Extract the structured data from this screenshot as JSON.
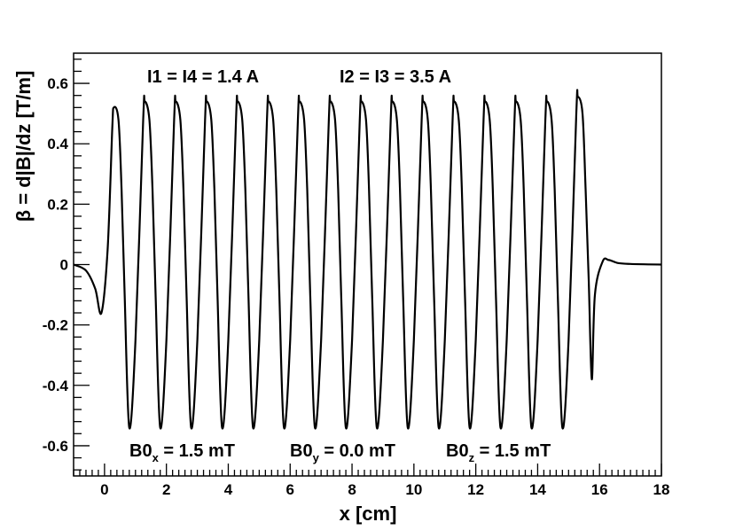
{
  "chart_data": {
    "type": "line",
    "xlabel": "x [cm]",
    "ylabel": "β = d|B|/dz [T/m]",
    "xlim": [
      -1,
      18
    ],
    "ylim": [
      -0.7,
      0.7
    ],
    "x_ticks": [
      0,
      2,
      4,
      6,
      8,
      10,
      12,
      14,
      16,
      18
    ],
    "x_tick_labels": [
      "0",
      "2",
      "4",
      "6",
      "8",
      "10",
      "12",
      "14",
      "16",
      "18"
    ],
    "y_ticks": [
      -0.6,
      -0.4,
      -0.2,
      0,
      0.2,
      0.4,
      0.6
    ],
    "y_tick_labels": [
      "-0.6",
      "-0.4",
      "-0.2",
      "0",
      "0.2",
      "0.4",
      "0.6"
    ],
    "grid": false,
    "legend": "none",
    "line_color": "#000000",
    "annotations": {
      "currents_1": "I1 = I4 = 1.4 A",
      "currents_2": "I2 = I3 = 3.5 A",
      "b0x": {
        "main": "B0",
        "sub": "x",
        "rest": " = 1.5 mT"
      },
      "b0y": {
        "main": "B0",
        "sub": "y",
        "rest": " = 0.0 mT"
      },
      "b0z": {
        "main": "B0",
        "sub": "z",
        "rest": " = 1.5 mT"
      }
    },
    "series": [
      {
        "x": [
          -1.0,
          -0.6,
          -0.3,
          -0.1,
          0.1,
          0.25,
          0.3,
          0.45,
          0.55,
          0.65,
          0.8,
          1.0,
          1.25,
          1.3,
          1.45,
          1.55,
          1.65,
          1.8,
          2.0,
          2.25,
          2.3,
          2.45,
          2.55,
          2.65,
          2.8,
          3.0,
          3.25,
          3.3,
          3.45,
          3.55,
          3.65,
          3.8,
          4.0,
          4.25,
          4.3,
          4.45,
          4.55,
          4.65,
          4.8,
          5.0,
          5.25,
          5.3,
          5.45,
          5.55,
          5.65,
          5.8,
          6.0,
          6.25,
          6.3,
          6.45,
          6.55,
          6.65,
          6.8,
          7.0,
          7.25,
          7.3,
          7.45,
          7.55,
          7.65,
          7.8,
          8.0,
          8.25,
          8.3,
          8.45,
          8.55,
          8.65,
          8.8,
          9.0,
          9.25,
          9.3,
          9.45,
          9.55,
          9.65,
          9.8,
          10.0,
          10.25,
          10.3,
          10.45,
          10.55,
          10.65,
          10.8,
          11.0,
          11.25,
          11.3,
          11.45,
          11.55,
          11.65,
          11.8,
          12.0,
          12.25,
          12.3,
          12.45,
          12.55,
          12.65,
          12.8,
          13.0,
          13.25,
          13.3,
          13.45,
          13.55,
          13.65,
          13.8,
          14.0,
          14.25,
          14.3,
          14.45,
          14.55,
          14.65,
          14.8,
          15.0,
          15.25,
          15.3,
          15.45,
          15.55,
          15.65,
          15.75,
          15.85,
          16.1,
          16.3,
          16.6,
          17.0,
          18.0
        ],
        "y": [
          0.0,
          -0.02,
          -0.08,
          -0.16,
          0.05,
          0.45,
          0.52,
          0.48,
          0.25,
          -0.1,
          -0.54,
          -0.25,
          0.48,
          0.54,
          0.48,
          0.25,
          -0.1,
          -0.54,
          -0.25,
          0.48,
          0.54,
          0.48,
          0.25,
          -0.1,
          -0.54,
          -0.25,
          0.48,
          0.54,
          0.48,
          0.25,
          -0.1,
          -0.54,
          -0.25,
          0.48,
          0.54,
          0.48,
          0.25,
          -0.1,
          -0.54,
          -0.25,
          0.48,
          0.54,
          0.48,
          0.25,
          -0.1,
          -0.54,
          -0.25,
          0.48,
          0.54,
          0.48,
          0.25,
          -0.1,
          -0.54,
          -0.25,
          0.48,
          0.54,
          0.48,
          0.25,
          -0.1,
          -0.54,
          -0.25,
          0.48,
          0.54,
          0.48,
          0.25,
          -0.1,
          -0.54,
          -0.25,
          0.48,
          0.54,
          0.48,
          0.25,
          -0.1,
          -0.54,
          -0.25,
          0.48,
          0.54,
          0.48,
          0.25,
          -0.1,
          -0.54,
          -0.25,
          0.48,
          0.54,
          0.48,
          0.25,
          -0.1,
          -0.54,
          -0.25,
          0.48,
          0.54,
          0.48,
          0.25,
          -0.1,
          -0.54,
          -0.25,
          0.48,
          0.54,
          0.48,
          0.25,
          -0.1,
          -0.54,
          -0.25,
          0.48,
          0.54,
          0.48,
          0.25,
          -0.1,
          -0.54,
          -0.25,
          0.5,
          0.555,
          0.5,
          0.25,
          -0.05,
          -0.38,
          -0.1,
          0.01,
          0.015,
          0.005,
          0.002,
          0.0
        ]
      }
    ]
  }
}
